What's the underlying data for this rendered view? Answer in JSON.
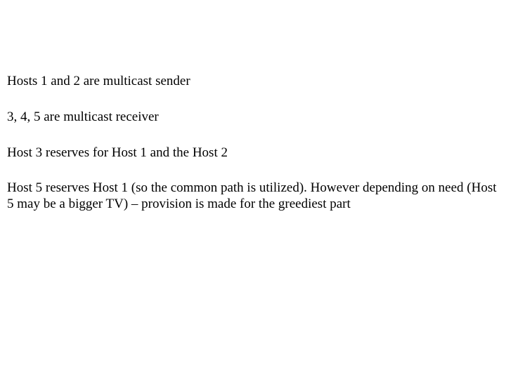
{
  "paragraphs": {
    "p1": "Hosts 1 and 2 are multicast sender",
    "p2": "3, 4, 5 are multicast receiver",
    "p3": "Host 3 reserves for Host 1 and the Host 2",
    "p4": "Host 5 reserves Host 1 (so the common path is utilized). However depending on need (Host 5 may be a bigger TV) – provision is made for the greediest part"
  },
  "typography": {
    "font_family": "Times New Roman",
    "font_size_pt": 14,
    "color": "#000000",
    "background_color": "#ffffff"
  }
}
